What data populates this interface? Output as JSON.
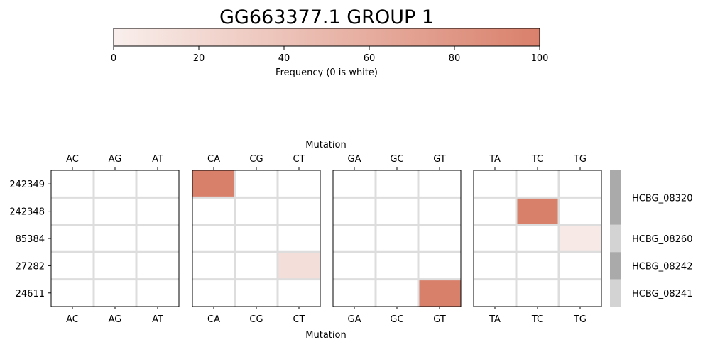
{
  "chart_data": {
    "type": "heatmap",
    "title": "GG663377.1 GROUP 1",
    "colorbar": {
      "label": "Frequency (0 is white)",
      "min": 0,
      "max": 100,
      "ticks": [
        "0",
        "20",
        "40",
        "60",
        "80",
        "100"
      ],
      "color_low": "#f9efec",
      "color_high": "#d9806b"
    },
    "xlabel_top": "Mutation",
    "xlabel_bottom": "Mutation",
    "rows": [
      "242349",
      "242348",
      "85384",
      "27282",
      "24611"
    ],
    "panels": [
      {
        "columns": [
          "AC",
          "AG",
          "AT"
        ]
      },
      {
        "columns": [
          "CA",
          "CG",
          "CT"
        ]
      },
      {
        "columns": [
          "GA",
          "GC",
          "GT"
        ]
      },
      {
        "columns": [
          "TA",
          "TC",
          "TG"
        ]
      }
    ],
    "cells": [
      {
        "row": "242349",
        "mutation": "CA",
        "value": 100
      },
      {
        "row": "242348",
        "mutation": "TC",
        "value": 100
      },
      {
        "row": "85384",
        "mutation": "TG",
        "value": 5
      },
      {
        "row": "27282",
        "mutation": "CT",
        "value": 15
      },
      {
        "row": "24611",
        "mutation": "GT",
        "value": 100
      }
    ],
    "gene_annotations": [
      {
        "label": "HCBG_08320",
        "rows": [
          "242349",
          "242348"
        ],
        "color": "#aaaaaa"
      },
      {
        "label": "HCBG_08260",
        "rows": [
          "85384"
        ],
        "color": "#d3d3d3"
      },
      {
        "label": "HCBG_08242",
        "rows": [
          "27282"
        ],
        "color": "#aaaaaa"
      },
      {
        "label": "HCBG_08241",
        "rows": [
          "24611"
        ],
        "color": "#d3d3d3"
      }
    ],
    "grid_color": "#dddddd"
  }
}
